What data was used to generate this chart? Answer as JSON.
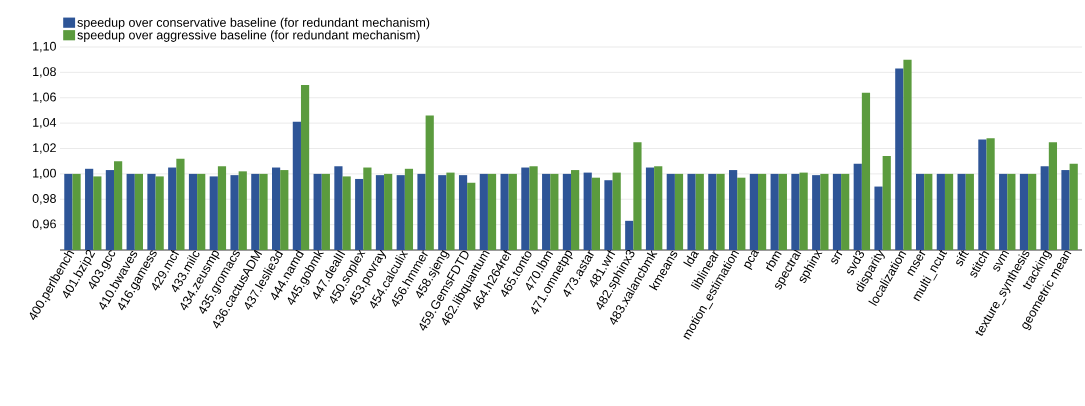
{
  "chart_data": {
    "type": "bar",
    "categories": [
      "400.perlbench",
      "401.bzip2",
      "403.gcc",
      "410.bwaves",
      "416.gamess",
      "429.mcf",
      "433.milc",
      "434.zeusmp",
      "435.gromacs",
      "436.cactusADM",
      "437.leslie3d",
      "444.namd",
      "445.gobmk",
      "447.dealII",
      "450.soplex",
      "453.povray",
      "454.calculix",
      "456.hmmer",
      "458.sjeng",
      "459.GemsFDTD",
      "462.libquantum",
      "464.h264ref",
      "465.tonto",
      "470.lbm",
      "471.omnetpp",
      "473.astar",
      "481.wrf",
      "482.sphinx3",
      "483.xalancbmk",
      "kmeans",
      "lda",
      "liblinear",
      "motion_estimation",
      "pca",
      "rbm",
      "spectral",
      "sphinx",
      "srr",
      "svd3",
      "disparity",
      "localization",
      "mser",
      "multi_ncut",
      "sift",
      "stitch",
      "svm",
      "texture_synthesis",
      "tracking",
      "geometric mean"
    ],
    "series": [
      {
        "name": "speedup over conservative baseline (for redundant mechanism)",
        "color": "#2e5597",
        "values": [
          1.0,
          1.004,
          1.003,
          1.0,
          1.0,
          1.005,
          1.0,
          0.998,
          0.999,
          1.0,
          1.005,
          1.041,
          1.0,
          1.006,
          0.996,
          0.999,
          0.999,
          1.0,
          0.999,
          0.999,
          1.0,
          1.0,
          1.005,
          1.0,
          1.0,
          1.001,
          0.995,
          0.963,
          1.005,
          1.0,
          1.0,
          1.0,
          1.003,
          1.0,
          1.0,
          1.0,
          0.999,
          1.0,
          1.008,
          0.99,
          1.083,
          1.0,
          1.0,
          1.0,
          1.027,
          1.0,
          1.0,
          1.006,
          1.003
        ]
      },
      {
        "name": "speedup over aggressive baseline (for redundant mechanism)",
        "color": "#5b9b3e",
        "values": [
          1.0,
          0.998,
          1.01,
          1.0,
          0.998,
          1.012,
          1.0,
          1.006,
          1.002,
          1.0,
          1.003,
          1.07,
          1.0,
          0.998,
          1.005,
          1.0,
          1.004,
          1.046,
          1.001,
          0.993,
          1.0,
          1.0,
          1.006,
          1.0,
          1.003,
          0.997,
          1.001,
          1.025,
          1.006,
          1.0,
          1.0,
          1.0,
          0.997,
          1.0,
          1.0,
          1.001,
          1.0,
          1.0,
          1.064,
          1.014,
          1.09,
          1.0,
          1.0,
          1.0,
          1.028,
          1.0,
          1.0,
          1.025,
          1.008
        ]
      }
    ],
    "ylim": [
      0.94,
      1.1
    ],
    "yticks": [
      {
        "value": 0.96,
        "label": "0,96"
      },
      {
        "value": 0.98,
        "label": "0,98"
      },
      {
        "value": 1.0,
        "label": "1,00"
      },
      {
        "value": 1.02,
        "label": "1,02"
      },
      {
        "value": 1.04,
        "label": "1,04"
      },
      {
        "value": 1.06,
        "label": "1,06"
      },
      {
        "value": 1.08,
        "label": "1,08"
      },
      {
        "value": 1.1,
        "label": "1,10"
      }
    ],
    "grid": "y",
    "legend": "top left"
  }
}
